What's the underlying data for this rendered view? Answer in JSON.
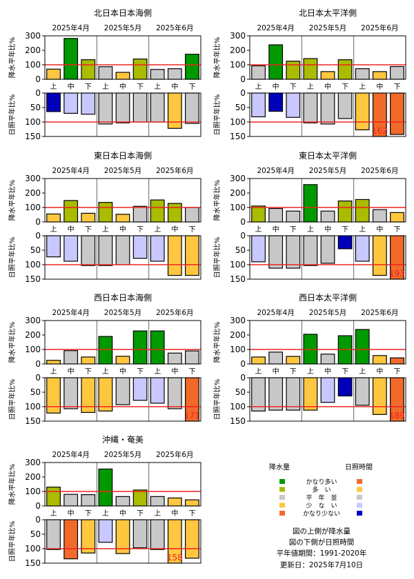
{
  "colors": {
    "precip_much_above": "#009900",
    "precip_above": "#aabb00",
    "normal": "#c8c8c8",
    "precip_below": "#ffc73f",
    "precip_much_below": "#f26a2a",
    "sun_much_above": "#f26a2a",
    "sun_above": "#ffc73f",
    "sun_below": "#c8c8ff",
    "sun_much_below": "#0000bb",
    "reference_line": "#ee2222"
  },
  "legend": {
    "precip_header": "降水量",
    "sun_header": "日照時間",
    "categories": [
      "かなり多い",
      "多　い",
      "平　年　並",
      "少　な　い",
      "かなり少ない"
    ],
    "precip_colors": [
      "#009900",
      "#aabb00",
      "#c8c8c8",
      "#ffc73f",
      "#f26a2a"
    ],
    "sun_colors": [
      "#f26a2a",
      "#ffc73f",
      "#c8c8c8",
      "#c8c8ff",
      "#0000bb"
    ]
  },
  "notes": {
    "line1": "図の上側が降水量",
    "line2": "図の下側が日照時間",
    "line3": "平年値期間：1991-2020年",
    "line4": "更新日：2025年7月10日"
  },
  "chart_data": [
    {
      "type": "bar",
      "title": "北日本日本海側",
      "months": [
        "2025年4月",
        "2025年5月",
        "2025年6月"
      ],
      "categories": [
        "上",
        "中",
        "下",
        "上",
        "中",
        "下",
        "上",
        "中",
        "下"
      ],
      "precip": {
        "ylabel": "降水平年比%",
        "ylim": [
          0,
          300
        ],
        "ticks": [
          0,
          100,
          200,
          300
        ],
        "values": [
          70,
          282,
          135,
          87,
          48,
          140,
          68,
          73,
          173
        ],
        "colors": [
          "#ffc73f",
          "#009900",
          "#aabb00",
          "#c8c8c8",
          "#ffc73f",
          "#aabb00",
          "#c8c8c8",
          "#c8c8c8",
          "#009900"
        ]
      },
      "sun": {
        "ylabel": "日照平年比%",
        "ylim": [
          0,
          150
        ],
        "ticks": [
          0,
          50,
          100,
          150
        ],
        "values": [
          64,
          70,
          73,
          107,
          103,
          100,
          100,
          122,
          105
        ],
        "colors": [
          "#0000bb",
          "#c8c8ff",
          "#c8c8ff",
          "#c8c8c8",
          "#c8c8c8",
          "#c8c8c8",
          "#c8c8c8",
          "#ffc73f",
          "#c8c8c8"
        ],
        "overflow": []
      }
    },
    {
      "type": "bar",
      "title": "北日本太平洋側",
      "months": [
        "2025年4月",
        "2025年5月",
        "2025年6月"
      ],
      "categories": [
        "上",
        "中",
        "下",
        "上",
        "中",
        "下",
        "上",
        "中",
        "下"
      ],
      "precip": {
        "ylabel": "降水平年比%",
        "ylim": [
          0,
          300
        ],
        "ticks": [
          0,
          100,
          200,
          300
        ],
        "values": [
          93,
          238,
          125,
          143,
          53,
          135,
          73,
          53,
          88
        ],
        "colors": [
          "#c8c8c8",
          "#009900",
          "#aabb00",
          "#aabb00",
          "#ffc73f",
          "#aabb00",
          "#c8c8c8",
          "#ffc73f",
          "#c8c8c8"
        ]
      },
      "sun": {
        "ylabel": "日照平年比%",
        "ylim": [
          0,
          150
        ],
        "ticks": [
          0,
          50,
          100,
          150
        ],
        "values": [
          82,
          63,
          84,
          103,
          107,
          88,
          127,
          162,
          143
        ],
        "colors": [
          "#c8c8ff",
          "#0000bb",
          "#c8c8ff",
          "#c8c8c8",
          "#c8c8c8",
          "#c8c8c8",
          "#ffc73f",
          "#f26a2a",
          "#f26a2a"
        ],
        "overflow": [
          {
            "index": 7,
            "label": "162"
          }
        ]
      }
    },
    {
      "type": "bar",
      "title": "東日本日本海側",
      "months": [
        "2025年4月",
        "2025年5月",
        "2025年6月"
      ],
      "categories": [
        "上",
        "中",
        "下",
        "上",
        "中",
        "下",
        "上",
        "中",
        "下"
      ],
      "precip": {
        "ylabel": "降水平年比%",
        "ylim": [
          0,
          300
        ],
        "ticks": [
          0,
          100,
          200,
          300
        ],
        "values": [
          55,
          148,
          60,
          135,
          53,
          108,
          152,
          128,
          100
        ],
        "colors": [
          "#ffc73f",
          "#aabb00",
          "#ffc73f",
          "#aabb00",
          "#ffc73f",
          "#c8c8c8",
          "#aabb00",
          "#aabb00",
          "#c8c8c8"
        ]
      },
      "sun": {
        "ylabel": "日照平年比%",
        "ylim": [
          0,
          150
        ],
        "ticks": [
          0,
          50,
          100,
          150
        ],
        "values": [
          73,
          88,
          103,
          103,
          100,
          78,
          88,
          137,
          137
        ],
        "colors": [
          "#c8c8ff",
          "#c8c8ff",
          "#c8c8c8",
          "#c8c8c8",
          "#c8c8c8",
          "#c8c8ff",
          "#c8c8ff",
          "#ffc73f",
          "#ffc73f"
        ],
        "overflow": []
      }
    },
    {
      "type": "bar",
      "title": "東日本太平洋側",
      "months": [
        "2025年4月",
        "2025年5月",
        "2025年6月"
      ],
      "categories": [
        "上",
        "中",
        "下",
        "上",
        "中",
        "下",
        "上",
        "中",
        "下"
      ],
      "precip": {
        "ylabel": "降水平年比%",
        "ylim": [
          0,
          300
        ],
        "ticks": [
          0,
          100,
          200,
          300
        ],
        "values": [
          110,
          93,
          75,
          258,
          75,
          145,
          155,
          85,
          65
        ],
        "colors": [
          "#aabb00",
          "#c8c8c8",
          "#c8c8c8",
          "#009900",
          "#c8c8c8",
          "#aabb00",
          "#aabb00",
          "#c8c8c8",
          "#ffc73f"
        ]
      },
      "sun": {
        "ylabel": "日照平年比%",
        "ylim": [
          0,
          150
        ],
        "ticks": [
          0,
          50,
          100,
          150
        ],
        "values": [
          90,
          112,
          112,
          103,
          95,
          45,
          88,
          137,
          193
        ],
        "colors": [
          "#c8c8ff",
          "#c8c8c8",
          "#c8c8c8",
          "#c8c8c8",
          "#c8c8c8",
          "#0000bb",
          "#c8c8ff",
          "#ffc73f",
          "#f26a2a"
        ],
        "overflow": [
          {
            "index": 8,
            "label": "193"
          }
        ]
      }
    },
    {
      "type": "bar",
      "title": "西日本日本海側",
      "months": [
        "2025年4月",
        "2025年5月",
        "2025年6月"
      ],
      "categories": [
        "上",
        "中",
        "下",
        "上",
        "中",
        "下",
        "上",
        "中",
        "下"
      ],
      "precip": {
        "ylabel": "降水平年比%",
        "ylim": [
          0,
          300
        ],
        "ticks": [
          0,
          100,
          200,
          300
        ],
        "values": [
          25,
          92,
          48,
          190,
          53,
          228,
          228,
          75,
          90
        ],
        "colors": [
          "#ffc73f",
          "#c8c8c8",
          "#ffc73f",
          "#009900",
          "#ffc73f",
          "#009900",
          "#009900",
          "#c8c8c8",
          "#c8c8c8"
        ]
      },
      "sun": {
        "ylabel": "日照平年比%",
        "ylim": [
          0,
          150
        ],
        "ticks": [
          0,
          50,
          100,
          150
        ],
        "values": [
          122,
          107,
          120,
          115,
          93,
          78,
          88,
          107,
          171
        ],
        "colors": [
          "#ffc73f",
          "#c8c8c8",
          "#ffc73f",
          "#ffc73f",
          "#c8c8c8",
          "#c8c8ff",
          "#c8c8ff",
          "#c8c8c8",
          "#f26a2a"
        ],
        "overflow": [
          {
            "index": 8,
            "label": "171"
          }
        ]
      }
    },
    {
      "type": "bar",
      "title": "西日本太平洋側",
      "months": [
        "2025年4月",
        "2025年5月",
        "2025年6月"
      ],
      "categories": [
        "上",
        "中",
        "下",
        "上",
        "中",
        "下",
        "上",
        "中",
        "下"
      ],
      "precip": {
        "ylabel": "降水平年比%",
        "ylim": [
          0,
          300
        ],
        "ticks": [
          0,
          100,
          200,
          300
        ],
        "values": [
          48,
          82,
          52,
          205,
          68,
          195,
          238,
          58,
          42
        ],
        "colors": [
          "#ffc73f",
          "#c8c8c8",
          "#ffc73f",
          "#009900",
          "#c8c8c8",
          "#009900",
          "#009900",
          "#ffc73f",
          "#f26a2a"
        ],
        "overflow_unused": []
      },
      "sun": {
        "ylabel": "日照平年比%",
        "ylim": [
          0,
          150
        ],
        "ticks": [
          0,
          50,
          100,
          150
        ],
        "values": [
          115,
          112,
          112,
          112,
          85,
          63,
          95,
          127,
          189
        ],
        "colors": [
          "#c8c8c8",
          "#c8c8c8",
          "#c8c8c8",
          "#ffc73f",
          "#c8c8ff",
          "#0000bb",
          "#c8c8c8",
          "#ffc73f",
          "#f26a2a"
        ],
        "overflow": [
          {
            "index": 8,
            "label": "189"
          }
        ]
      }
    },
    {
      "type": "bar",
      "title": "沖縄・奄美",
      "months": [
        "2025年4月",
        "2025年5月",
        "2025年6月"
      ],
      "categories": [
        "上",
        "中",
        "下",
        "上",
        "中",
        "下",
        "上",
        "中",
        "下"
      ],
      "precip": {
        "ylabel": "降水平年比%",
        "ylim": [
          0,
          300
        ],
        "ticks": [
          0,
          100,
          200,
          300
        ],
        "values": [
          130,
          80,
          78,
          255,
          65,
          110,
          65,
          55,
          42
        ],
        "colors": [
          "#aabb00",
          "#c8c8c8",
          "#c8c8c8",
          "#009900",
          "#c8c8c8",
          "#aabb00",
          "#c8c8c8",
          "#ffc73f",
          "#ffc73f"
        ]
      },
      "sun": {
        "ylabel": "日照平年比%",
        "ylim": [
          0,
          150
        ],
        "ticks": [
          0,
          50,
          100,
          150
        ],
        "values": [
          103,
          135,
          115,
          78,
          117,
          97,
          103,
          158,
          133
        ],
        "colors": [
          "#c8c8c8",
          "#f26a2a",
          "#ffc73f",
          "#c8c8ff",
          "#ffc73f",
          "#c8c8c8",
          "#c8c8c8",
          "#ffc73f",
          "#ffc73f"
        ],
        "overflow": [
          {
            "index": 7,
            "label": "158"
          }
        ]
      }
    }
  ]
}
